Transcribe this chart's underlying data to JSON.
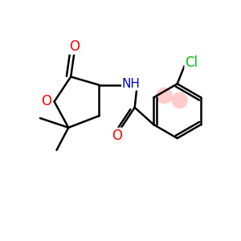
{
  "bg_color": "#ffffff",
  "bond_color": "#000000",
  "bond_lw": 1.8,
  "atom_colors": {
    "O": "#ff0000",
    "N": "#0000cc",
    "Cl": "#00bb00",
    "C": "#000000"
  },
  "aromatic_circle_color": "#ffaaaa",
  "aromatic_circle_alpha": 0.6
}
